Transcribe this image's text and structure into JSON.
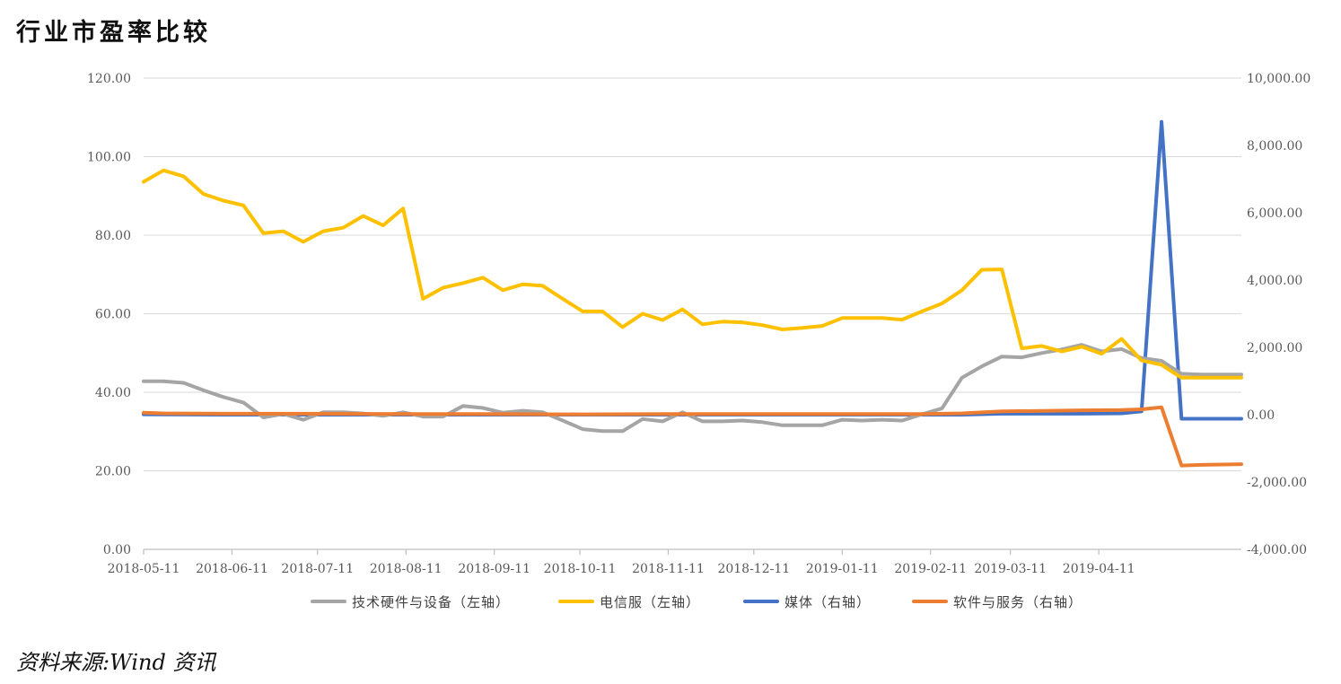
{
  "title": "行业市盈率比较",
  "source": "资料来源:Wind 资讯",
  "chart_data": {
    "type": "line",
    "title": "行业市盈率比较",
    "grid": "horizontal",
    "legend_position": "bottom",
    "left_axis": {
      "min": 0,
      "max": 120,
      "step": 20,
      "tick_labels": [
        "0.00",
        "20.00",
        "40.00",
        "60.00",
        "80.00",
        "100.00",
        "120.00"
      ]
    },
    "right_axis": {
      "min": -4000,
      "max": 10000,
      "step": 2000,
      "tick_labels": [
        "-4,000.00",
        "-2,000.00",
        "0.00",
        "2,000.00",
        "4,000.00",
        "6,000.00",
        "8,000.00",
        "10,000.00"
      ]
    },
    "x_tick_labels": [
      "2018-05-11",
      "2018-06-11",
      "2018-07-11",
      "2018-08-11",
      "2018-09-11",
      "2018-10-11",
      "2018-11-11",
      "2018-12-11",
      "2019-01-11",
      "2019-02-11",
      "2019-03-11",
      "2019-04-11"
    ],
    "x_range": [
      "2018-05-11",
      "2019-05-31"
    ],
    "series": [
      {
        "name": "技术硬件与设备（左轴）",
        "axis": "left",
        "color": "#A5A5A5",
        "dates": [
          "2018-05-11",
          "2018-05-18",
          "2018-05-25",
          "2018-06-01",
          "2018-06-08",
          "2018-06-15",
          "2018-06-22",
          "2018-06-29",
          "2018-07-06",
          "2018-07-13",
          "2018-07-20",
          "2018-07-27",
          "2018-08-03",
          "2018-08-10",
          "2018-08-17",
          "2018-08-24",
          "2018-08-31",
          "2018-09-07",
          "2018-09-14",
          "2018-09-21",
          "2018-09-28",
          "2018-10-05",
          "2018-10-12",
          "2018-10-19",
          "2018-10-26",
          "2018-11-02",
          "2018-11-09",
          "2018-11-16",
          "2018-11-23",
          "2018-11-30",
          "2018-12-07",
          "2018-12-14",
          "2018-12-21",
          "2018-12-28",
          "2019-01-04",
          "2019-01-11",
          "2019-01-18",
          "2019-01-25",
          "2019-02-01",
          "2019-02-08",
          "2019-02-15",
          "2019-02-22",
          "2019-03-01",
          "2019-03-08",
          "2019-03-15",
          "2019-03-22",
          "2019-03-29",
          "2019-04-05",
          "2019-04-12",
          "2019-04-19",
          "2019-04-26",
          "2019-05-03",
          "2019-05-10",
          "2019-05-17",
          "2019-05-24",
          "2019-05-31"
        ],
        "values": [
          42.8,
          42.8,
          42.4,
          40.5,
          38.8,
          37.4,
          33.6,
          34.5,
          33.0,
          34.9,
          34.9,
          34.6,
          34.0,
          34.9,
          33.8,
          33.8,
          36.5,
          36.0,
          34.8,
          35.3,
          34.9,
          32.8,
          30.6,
          30.1,
          30.1,
          33.2,
          32.6,
          34.9,
          32.6,
          32.6,
          32.8,
          32.4,
          31.6,
          31.6,
          31.6,
          33.0,
          32.8,
          33.0,
          32.8,
          34.4,
          35.9,
          43.7,
          46.6,
          49.1,
          48.9,
          50.0,
          50.9,
          52.1,
          50.4,
          51.0,
          48.7,
          48.0,
          44.7,
          44.5,
          44.5,
          44.5
        ]
      },
      {
        "name": "电信服（左轴）",
        "axis": "left",
        "color": "#FFC000",
        "dates": [
          "2018-05-11",
          "2018-05-18",
          "2018-05-25",
          "2018-06-01",
          "2018-06-08",
          "2018-06-15",
          "2018-06-22",
          "2018-06-29",
          "2018-07-06",
          "2018-07-13",
          "2018-07-20",
          "2018-07-27",
          "2018-08-03",
          "2018-08-10",
          "2018-08-17",
          "2018-08-24",
          "2018-08-31",
          "2018-09-07",
          "2018-09-14",
          "2018-09-21",
          "2018-09-28",
          "2018-10-05",
          "2018-10-12",
          "2018-10-19",
          "2018-10-26",
          "2018-11-02",
          "2018-11-09",
          "2018-11-16",
          "2018-11-23",
          "2018-11-30",
          "2018-12-07",
          "2018-12-14",
          "2018-12-21",
          "2018-12-28",
          "2019-01-04",
          "2019-01-11",
          "2019-01-18",
          "2019-01-25",
          "2019-02-01",
          "2019-02-08",
          "2019-02-15",
          "2019-02-22",
          "2019-03-01",
          "2019-03-08",
          "2019-03-15",
          "2019-03-22",
          "2019-03-29",
          "2019-04-05",
          "2019-04-12",
          "2019-04-19",
          "2019-04-26",
          "2019-05-03",
          "2019-05-10",
          "2019-05-17",
          "2019-05-24",
          "2019-05-31"
        ],
        "values": [
          93.6,
          96.5,
          95.0,
          90.5,
          88.8,
          87.6,
          80.5,
          81.0,
          78.3,
          81.0,
          81.9,
          84.9,
          82.5,
          86.8,
          63.8,
          66.6,
          67.8,
          69.2,
          66.0,
          67.5,
          67.1,
          63.8,
          60.6,
          60.6,
          56.6,
          60.0,
          58.4,
          61.1,
          57.3,
          58.0,
          57.8,
          57.1,
          56.0,
          56.4,
          56.9,
          58.9,
          58.9,
          58.9,
          58.5,
          60.6,
          62.6,
          66.0,
          71.2,
          71.3,
          51.2,
          51.8,
          50.4,
          51.6,
          49.8,
          53.6,
          48.1,
          47.0,
          43.7,
          43.7,
          43.7,
          43.7
        ]
      },
      {
        "name": "媒体（右轴）",
        "axis": "right",
        "color": "#4472C4",
        "dates": [
          "2018-05-11",
          "2018-06-08",
          "2018-07-06",
          "2018-08-10",
          "2018-09-07",
          "2018-10-12",
          "2018-11-09",
          "2018-12-07",
          "2019-01-11",
          "2019-02-08",
          "2019-02-22",
          "2019-03-08",
          "2019-04-05",
          "2019-04-19",
          "2019-04-26",
          "2019-05-03",
          "2019-05-10",
          "2019-05-17",
          "2019-05-24",
          "2019-05-31"
        ],
        "values": [
          10,
          0,
          0,
          0,
          0,
          0,
          0,
          0,
          0,
          0,
          0,
          30,
          30,
          40,
          100,
          8700,
          -120,
          -120,
          -120,
          -120
        ]
      },
      {
        "name": "软件与服务（右轴）",
        "axis": "right",
        "color": "#ED7D31",
        "dates": [
          "2018-05-11",
          "2018-05-18",
          "2018-06-08",
          "2018-07-06",
          "2018-08-10",
          "2018-09-07",
          "2018-10-12",
          "2018-11-09",
          "2018-12-07",
          "2019-01-11",
          "2019-02-08",
          "2019-02-22",
          "2019-03-08",
          "2019-04-05",
          "2019-04-19",
          "2019-04-26",
          "2019-05-03",
          "2019-05-10",
          "2019-05-17",
          "2019-05-24",
          "2019-05-31"
        ],
        "values": [
          60,
          40,
          30,
          30,
          20,
          20,
          10,
          20,
          20,
          20,
          20,
          40,
          100,
          130,
          140,
          160,
          220,
          -1510,
          -1490,
          -1480,
          -1470
        ]
      }
    ]
  }
}
